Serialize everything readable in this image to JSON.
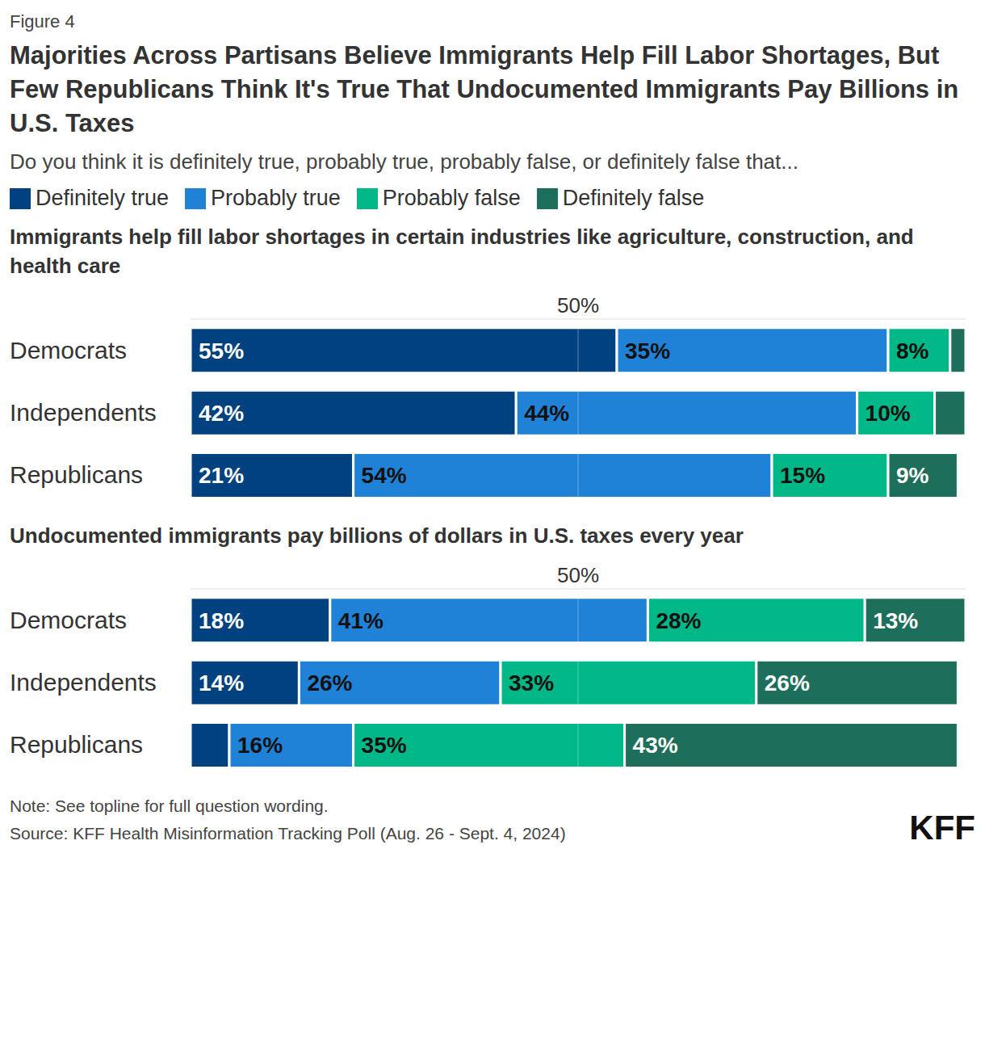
{
  "figure_label": "Figure 4",
  "title": "Majorities Across Partisans Believe Immigrants Help Fill Labor Shortages, But Few Republicans Think It's True That Undocumented Immigrants Pay Billions in U.S. Taxes",
  "subtitle": "Do you think it is definitely true, probably true, probably false, or definitely false that...",
  "note": "Note: See topline for full question wording.",
  "source": "Source: KFF Health Misinformation Tracking Poll (Aug. 26 - Sept. 4, 2024)",
  "logo": "KFF",
  "chart_data": [
    {
      "type": "bar",
      "title": "Immigrants help fill labor shortages in certain industries like agriculture, construction, and health care",
      "orientation": "horizontal",
      "stacked": true,
      "data_labels": true,
      "grid": true,
      "legend": "top",
      "categories": [
        "Democrats",
        "Independents",
        "Republicans"
      ],
      "xlim": [
        0,
        100
      ],
      "xticks": [
        {
          "value": 50,
          "label": "50%"
        }
      ],
      "series": [
        {
          "name": "Definitely true",
          "color": "#00427f",
          "values": [
            55,
            42,
            21
          ],
          "value_labels": [
            "55%",
            "42%",
            "21%"
          ]
        },
        {
          "name": "Probably true",
          "color": "#1f82d6",
          "values": [
            35,
            44,
            54
          ],
          "value_labels": [
            "35%",
            "44%",
            "54%"
          ]
        },
        {
          "name": "Probably false",
          "color": "#00b887",
          "values": [
            8,
            10,
            15
          ],
          "value_labels": [
            "8%",
            "10%",
            "15%"
          ]
        },
        {
          "name": "Definitely false",
          "color": "#1d6e5b",
          "values": [
            2,
            4,
            9
          ],
          "value_labels": [
            null,
            null,
            "9%"
          ]
        }
      ]
    },
    {
      "type": "bar",
      "title": "Undocumented immigrants pay billions of dollars in U.S. taxes every year",
      "orientation": "horizontal",
      "stacked": true,
      "data_labels": true,
      "grid": true,
      "categories": [
        "Democrats",
        "Independents",
        "Republicans"
      ],
      "xlim": [
        0,
        100
      ],
      "xticks": [
        {
          "value": 50,
          "label": "50%"
        }
      ],
      "series": [
        {
          "name": "Definitely true",
          "color": "#00427f",
          "values": [
            18,
            14,
            5
          ],
          "value_labels": [
            "18%",
            "14%",
            null
          ]
        },
        {
          "name": "Probably true",
          "color": "#1f82d6",
          "values": [
            41,
            26,
            16
          ],
          "value_labels": [
            "41%",
            "26%",
            "16%"
          ]
        },
        {
          "name": "Probably false",
          "color": "#00b887",
          "values": [
            28,
            33,
            35
          ],
          "value_labels": [
            "28%",
            "33%",
            "35%"
          ]
        },
        {
          "name": "Definitely false",
          "color": "#1d6e5b",
          "values": [
            13,
            26,
            43
          ],
          "value_labels": [
            "13%",
            "26%",
            "43%"
          ]
        }
      ]
    }
  ]
}
